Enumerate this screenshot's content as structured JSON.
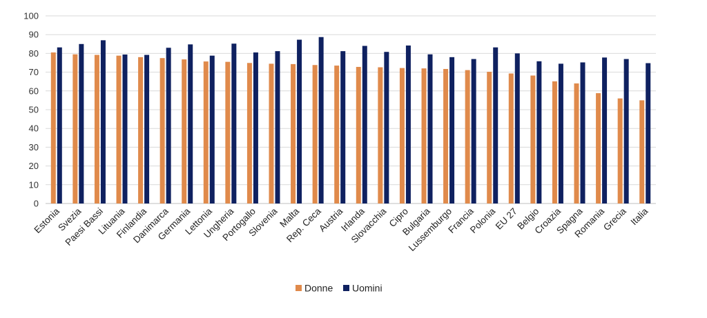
{
  "chart_data": {
    "type": "bar",
    "categories": [
      "Estonia",
      "Svezia",
      "Paesi Bassi",
      "Lituania",
      "Finlandia",
      "Danimarca",
      "Germania",
      "Lettonia",
      "Ungheria",
      "Portogallo",
      "Slovenia",
      "Malta",
      "Rep. Ceca",
      "Austria",
      "Irlanda",
      "Slovacchia",
      "Cipro",
      "Bulgaria",
      "Lussemburgo",
      "Francia",
      "Polonia",
      "EU 27",
      "Belgio",
      "Croazia",
      "Spagna",
      "Romania",
      "Grecia",
      "Italia"
    ],
    "series": [
      {
        "name": "Donne",
        "color": "#e08a4b",
        "values": [
          80.5,
          79.5,
          79.2,
          78.8,
          78.0,
          77.5,
          76.8,
          75.7,
          75.5,
          74.9,
          74.5,
          74.3,
          73.8,
          73.5,
          72.8,
          72.6,
          72.2,
          72.0,
          71.7,
          71.1,
          70.2,
          69.3,
          68.2,
          65.1,
          64.0,
          58.8,
          56.0,
          55.0
        ]
      },
      {
        "name": "Uomini",
        "color": "#0f2160",
        "values": [
          83.2,
          85.0,
          87.0,
          79.4,
          79.2,
          83.0,
          84.8,
          78.8,
          85.2,
          80.5,
          81.2,
          87.3,
          88.7,
          81.2,
          84.0,
          80.8,
          84.2,
          79.5,
          78.0,
          77.0,
          83.2,
          80.0,
          75.8,
          74.5,
          75.2,
          77.8,
          77.0,
          74.8
        ]
      }
    ],
    "yticks": [
      "0",
      "10",
      "20",
      "30",
      "40",
      "50",
      "60",
      "70",
      "80",
      "90",
      "100"
    ],
    "ylim": [
      0,
      100
    ],
    "grid": true,
    "legend": "bottom"
  }
}
